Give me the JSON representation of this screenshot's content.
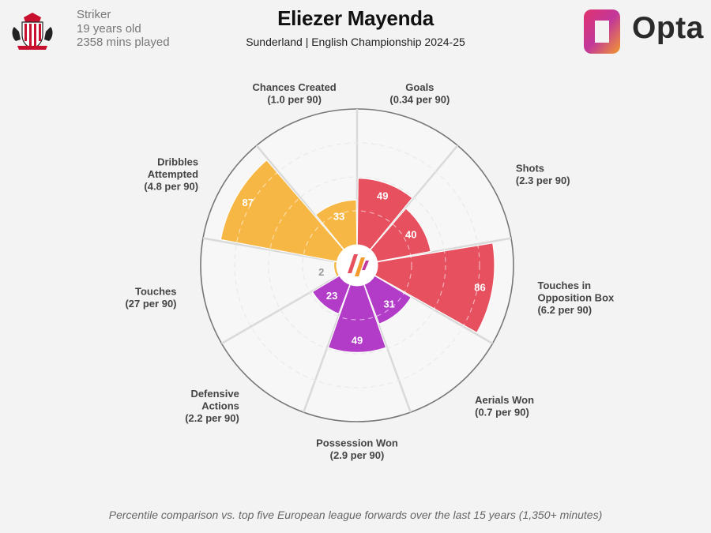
{
  "player": {
    "name": "Eliezer Mayenda",
    "team_league": "Sunderland | English Championship 2024-25",
    "position": "Striker",
    "age": "19 years old",
    "minutes": "2358 mins played"
  },
  "brand": {
    "name": "Opta"
  },
  "footnote": "Percentile comparison vs. top five European league forwards over the last 15 years (1,350+ minutes)",
  "chart_data": {
    "type": "polar-bar",
    "scale": [
      0,
      100
    ],
    "categories": [
      {
        "label": [
          "Goals",
          "(0.34 per 90)"
        ],
        "value": 49,
        "color": "#e6505f"
      },
      {
        "label": [
          "Shots",
          "(2.3 per 90)"
        ],
        "value": 40,
        "color": "#e6505f"
      },
      {
        "label": [
          "Touches in",
          "Opposition Box",
          "(6.2 per 90)"
        ],
        "value": 86,
        "color": "#e6505f"
      },
      {
        "label": [
          "Aerials Won",
          "(0.7 per 90)"
        ],
        "value": 31,
        "color": "#b23bc8"
      },
      {
        "label": [
          "Possession Won",
          "(2.9 per 90)"
        ],
        "value": 49,
        "color": "#b23bc8"
      },
      {
        "label": [
          "Defensive",
          "Actions",
          "(2.2 per 90)"
        ],
        "value": 23,
        "color": "#b23bc8"
      },
      {
        "label": [
          "Touches",
          "(27 per 90)"
        ],
        "value": 2,
        "color": "#f7b745"
      },
      {
        "label": [
          "Dribbles",
          "Attempted",
          "(4.8 per 90)"
        ],
        "value": 87,
        "color": "#f7b745"
      },
      {
        "label": [
          "Chances Created",
          "(1.0 per 90)"
        ],
        "value": 33,
        "color": "#f7b745"
      }
    ],
    "gridlines": [
      25,
      50,
      75
    ],
    "colors": {
      "attack": "#e6505f",
      "defence": "#b23bc8",
      "possession": "#f7b745"
    }
  }
}
